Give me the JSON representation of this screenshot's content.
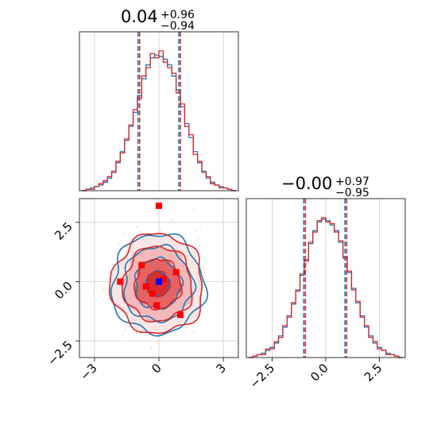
{
  "chart_data": [
    {
      "type": "histogram",
      "panel": "x-marginal",
      "title": {
        "value": "0.04",
        "plus": "+0.96",
        "minus": "−0.94"
      },
      "xlim": [
        -3.7,
        3.7
      ],
      "grid": true,
      "quantiles": {
        "lower": -0.9,
        "median": 0.04,
        "upper": 1.0
      },
      "series": [
        {
          "color": "#1f77b4",
          "values": [
            0,
            1,
            2,
            3,
            4,
            6,
            9,
            14,
            20,
            28,
            36,
            46,
            56,
            68,
            80,
            90,
            95,
            97,
            96,
            94,
            90,
            82,
            72,
            60,
            48,
            38,
            28,
            20,
            14,
            9,
            6,
            4,
            3,
            2,
            1,
            0
          ]
        },
        {
          "color": "#d62728",
          "values": [
            0,
            1,
            1,
            3,
            5,
            7,
            10,
            13,
            21,
            27,
            37,
            47,
            58,
            66,
            82,
            88,
            98,
            95,
            100,
            92,
            88,
            84,
            70,
            62,
            46,
            40,
            26,
            21,
            13,
            10,
            5,
            4,
            2,
            2,
            1,
            0
          ]
        }
      ]
    },
    {
      "type": "histogram",
      "panel": "y-marginal",
      "title": {
        "value": "−0.00",
        "plus": "+0.97",
        "minus": "−0.95"
      },
      "xlim": [
        -3.7,
        3.7
      ],
      "x_ticks": [
        "−2.5",
        "0.0",
        "2.5"
      ],
      "grid": true,
      "quantiles": {
        "lower": -0.95,
        "median": 0.0,
        "upper": 0.97
      },
      "series": [
        {
          "color": "#1f77b4",
          "values": [
            0,
            1,
            2,
            3,
            5,
            7,
            10,
            15,
            21,
            29,
            37,
            47,
            57,
            68,
            79,
            88,
            94,
            96,
            95,
            92,
            88,
            80,
            70,
            59,
            48,
            38,
            29,
            21,
            15,
            10,
            7,
            5,
            3,
            2,
            1,
            0
          ]
        },
        {
          "color": "#d62728",
          "values": [
            0,
            1,
            2,
            2,
            6,
            6,
            11,
            14,
            22,
            28,
            38,
            46,
            58,
            67,
            80,
            87,
            95,
            97,
            94,
            93,
            87,
            81,
            69,
            60,
            47,
            39,
            28,
            22,
            14,
            11,
            6,
            5,
            2,
            2,
            1,
            0
          ]
        }
      ]
    },
    {
      "type": "contour",
      "panel": "joint",
      "xlim": [
        -3.7,
        3.7
      ],
      "ylim": [
        -3.2,
        3.5
      ],
      "x_ticks": [
        "−3",
        "0",
        "3"
      ],
      "y_ticks": [
        "−2.5",
        "0.0",
        "2.5"
      ],
      "grid": true,
      "levels_sigma": [
        0.5,
        1.0,
        1.5,
        2.0
      ],
      "series": [
        {
          "color": "#1f77b4"
        },
        {
          "color": "#d62728"
        }
      ],
      "truth_point": {
        "x": 0.0,
        "y": 0.0,
        "color": "#0000ff"
      },
      "red_points": [
        {
          "x": -0.8,
          "y": 0.7
        },
        {
          "x": -1.8,
          "y": 0.0
        },
        {
          "x": 0.8,
          "y": 0.4
        },
        {
          "x": 1.0,
          "y": -1.4
        },
        {
          "x": -0.6,
          "y": -0.2
        },
        {
          "x": 0.2,
          "y": 0.1
        },
        {
          "x": -0.3,
          "y": -0.5
        },
        {
          "x": -0.1,
          "y": -1.0
        },
        {
          "x": 0.0,
          "y": 3.2
        }
      ]
    }
  ]
}
